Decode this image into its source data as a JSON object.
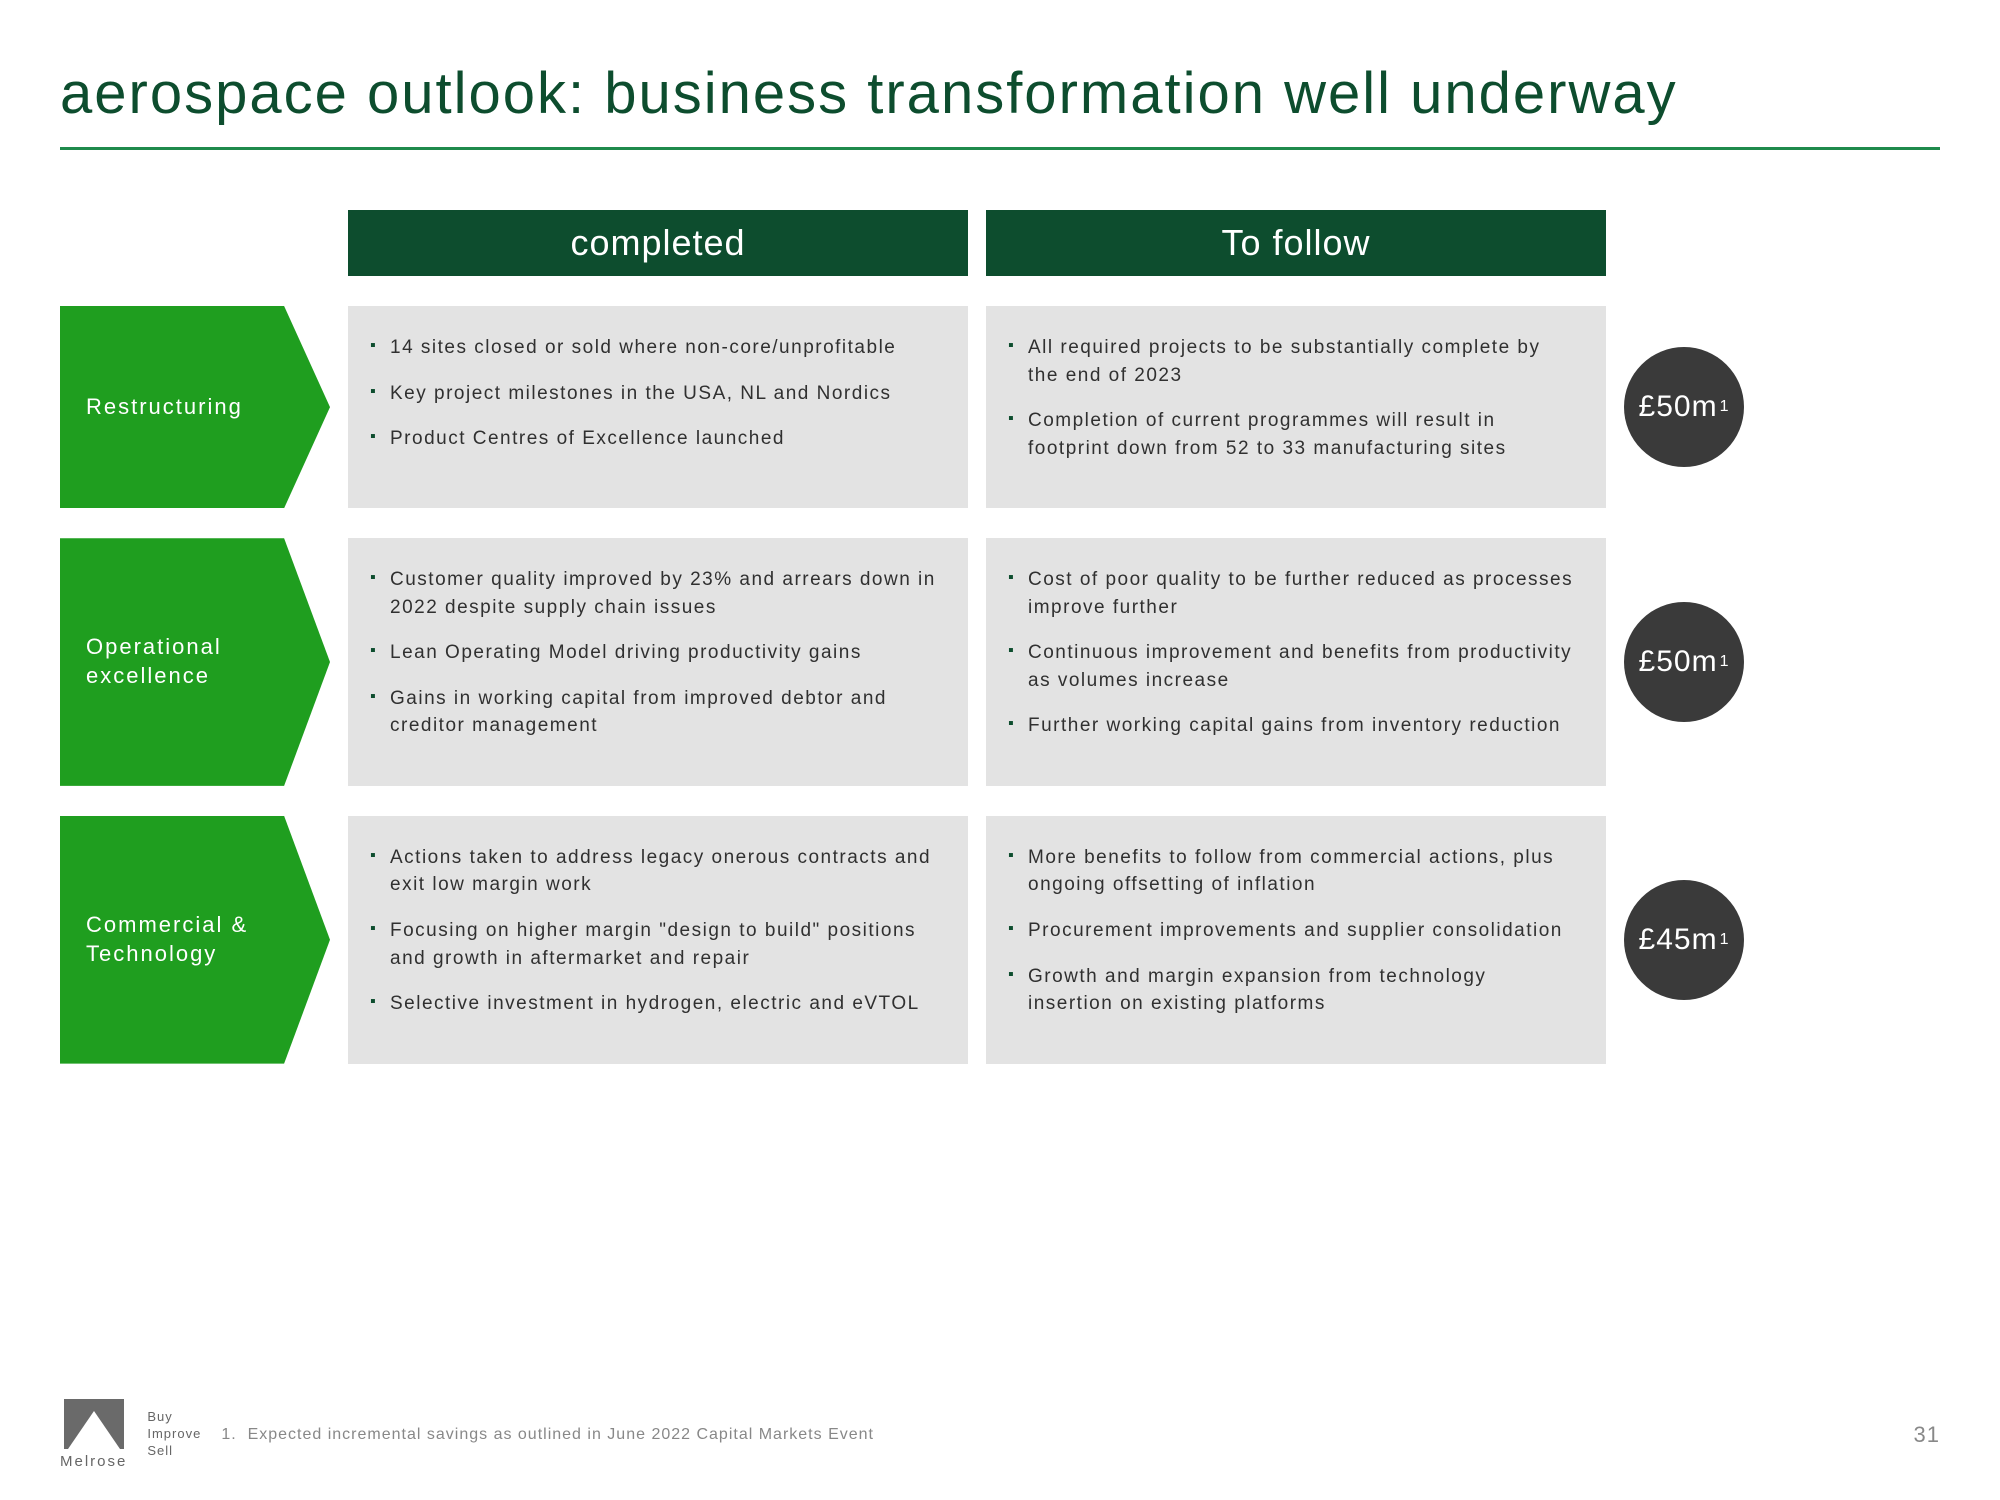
{
  "title": "aerospace outlook: business transformation well underway",
  "columns": {
    "completed": "completed",
    "tofollow": "To follow"
  },
  "rows": [
    {
      "label": "Restructuring",
      "completed": [
        "14 sites closed or sold where non-core/unprofitable",
        "Key project milestones in the USA, NL and Nordics",
        "Product Centres of Excellence launched"
      ],
      "tofollow": [
        "All required projects to be substantially complete by the end of 2023",
        "Completion of current programmes will result in footprint down from 52 to 33 manufacturing sites"
      ],
      "value": "£50m",
      "note": "1"
    },
    {
      "label": "Operational excellence",
      "completed": [
        "Customer quality improved by 23% and arrears down in 2022 despite supply chain issues",
        "Lean Operating Model driving productivity gains",
        "Gains in working capital from improved debtor and creditor management"
      ],
      "tofollow": [
        "Cost of poor quality to be further reduced as processes improve further",
        "Continuous improvement and benefits from productivity as volumes increase",
        "Further working capital gains from inventory reduction"
      ],
      "value": "£50m",
      "note": "1"
    },
    {
      "label": "Commercial & Technology",
      "completed": [
        "Actions taken to address legacy onerous contracts and exit low margin work",
        "Focusing on higher margin \"design to build\" positions and growth in aftermarket and repair",
        "Selective investment in hydrogen, electric and eVTOL"
      ],
      "tofollow": [
        "More benefits to follow from commercial actions, plus ongoing offsetting of inflation",
        "Procurement improvements and supplier consolidation",
        "Growth and margin expansion from technology insertion on existing platforms"
      ],
      "value": "£45m",
      "note": "1"
    }
  ],
  "footer": {
    "brand": "Melrose",
    "tagline1": "Buy",
    "tagline2": "Improve",
    "tagline3": "Sell",
    "footnote_num": "1.",
    "footnote": "Expected incremental savings as outlined in June 2022 Capital Markets Event",
    "page": "31"
  },
  "style": {
    "header_bg": "#0d4d2e",
    "arrow_bg": "#1f9e1f",
    "box_bg": "#e3e3e3",
    "circle_bg": "#3a3a3a",
    "bullet_color": "#0d4d2e",
    "title_color": "#0d4d2e"
  }
}
